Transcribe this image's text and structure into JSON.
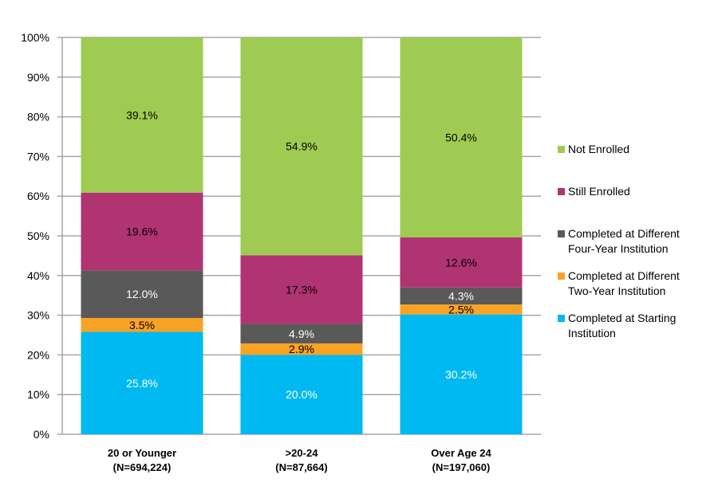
{
  "chart_data": {
    "type": "bar",
    "stacked": true,
    "categories": [
      [
        "20 or Younger",
        "(N=694,224)"
      ],
      [
        ">20-24",
        "(N=87,664)"
      ],
      [
        "Over Age 24",
        "(N=197,060)"
      ]
    ],
    "series": [
      {
        "name": "Completed at Starting Institution",
        "legend_lines": [
          "Completed at Starting",
          "Institution"
        ],
        "color": "#00B9F1",
        "label_color": "#FFFFFF",
        "values": [
          25.8,
          20.0,
          30.2
        ],
        "labels": [
          "25.8%",
          "20.0%",
          "30.2%"
        ]
      },
      {
        "name": "Completed at Different Two-Year Institution",
        "legend_lines": [
          "Completed at Different",
          "Two-Year Institution"
        ],
        "color": "#F9A325",
        "label_color": "#000000",
        "values": [
          3.5,
          2.9,
          2.5
        ],
        "labels": [
          "3.5%",
          "2.9%",
          "2.5%"
        ]
      },
      {
        "name": "Completed at Different Four-Year Institution",
        "legend_lines": [
          "Completed at Different",
          "Four-Year Institution"
        ],
        "color": "#595959",
        "label_color": "#FFFFFF",
        "values": [
          12.0,
          4.9,
          4.3
        ],
        "labels": [
          "12.0%",
          "4.9%",
          "4.3%"
        ]
      },
      {
        "name": "Still Enrolled",
        "legend_lines": [
          "Still Enrolled"
        ],
        "color": "#B03472",
        "label_color": "#000000",
        "values": [
          19.6,
          17.3,
          12.6
        ],
        "labels": [
          "19.6%",
          "17.3%",
          "12.6%"
        ]
      },
      {
        "name": "Not Enrolled",
        "legend_lines": [
          "Not Enrolled"
        ],
        "color": "#9FCB52",
        "label_color": "#000000",
        "values": [
          39.1,
          54.9,
          50.4
        ],
        "labels": [
          "39.1%",
          "54.9%",
          "50.4%"
        ]
      }
    ],
    "yticks": [
      "0%",
      "10%",
      "20%",
      "30%",
      "40%",
      "50%",
      "60%",
      "70%",
      "80%",
      "90%",
      "100%"
    ],
    "ylim": [
      0,
      100
    ],
    "grid": true,
    "legend_position": "right",
    "title": "",
    "xlabel": "",
    "ylabel": ""
  }
}
